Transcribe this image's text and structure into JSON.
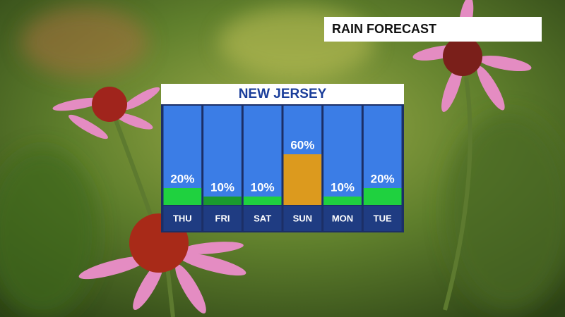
{
  "header": {
    "title": "RAIN FORECAST"
  },
  "chart_data": {
    "type": "bar",
    "title": "NEW JERSEY",
    "categories": [
      "THU",
      "FRI",
      "SAT",
      "SUN",
      "MON",
      "TUE"
    ],
    "values": [
      20,
      10,
      10,
      60,
      10,
      20
    ],
    "value_labels": [
      "20%",
      "10%",
      "10%",
      "60%",
      "10%",
      "20%"
    ],
    "colors": [
      "#1fd13f",
      "#1a9a2e",
      "#1fd13f",
      "#dc9a1e",
      "#1fd13f",
      "#1fd13f"
    ],
    "ylim": [
      0,
      100
    ]
  }
}
